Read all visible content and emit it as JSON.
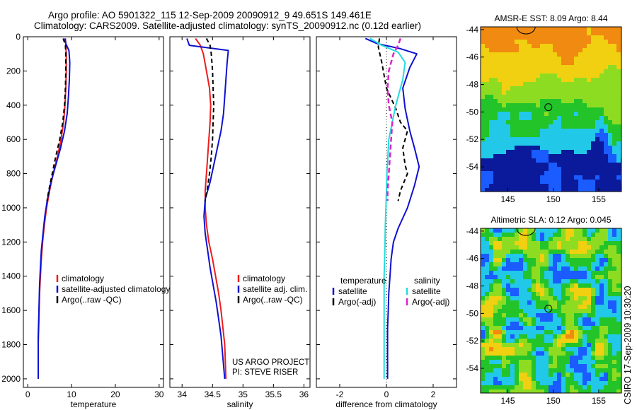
{
  "header": {
    "line1": "Argo profile: AO 5901322_115 12-Sep-2009 20090912_9 49.651S 149.461E",
    "line2": "Climatology: CARS2009. Satellite-adjusted climatology: synTS_20090912.nc (0.12d earlier)"
  },
  "credit": {
    "line1": "US ARGO PROJECT",
    "line2": "PI: STEVE RISER"
  },
  "side_label": "CSIRO 17-Sep-2009 10:30:20",
  "colors": {
    "climatology": "#ee1c1c",
    "satellite": "#1010d0",
    "argo": "#000000",
    "satellite_diff": "#22dddd",
    "salinity_argo_diff": "#dd22cc",
    "map_deep": "#0a1a9a",
    "map_green": "#22c42a",
    "map_orange": "#f08a10"
  },
  "chart_data": [
    {
      "type": "line",
      "xlabel": "temperature",
      "xlim": [
        -1,
        31
      ],
      "ylim": [
        2050,
        0
      ],
      "y_reversed": true,
      "xticks": [
        0,
        10,
        20,
        30
      ],
      "yticks": [
        0,
        200,
        400,
        600,
        800,
        1000,
        1200,
        1400,
        1600,
        1800,
        2000
      ],
      "series": [
        {
          "name": "climatology",
          "color": "#ee1c1c",
          "width": 2,
          "dash": "",
          "x": [
            8.6,
            8.7,
            8.8,
            8.8,
            8.7,
            8.5,
            8.2,
            7.6,
            6.8,
            5.8,
            5.0,
            4.3,
            3.8,
            3.4,
            3.1,
            2.9,
            2.7,
            2.6,
            2.5,
            2.4,
            2.4
          ],
          "y": [
            10,
            50,
            100,
            200,
            300,
            400,
            500,
            600,
            700,
            800,
            900,
            1000,
            1100,
            1200,
            1300,
            1400,
            1500,
            1600,
            1700,
            1800,
            2000
          ]
        },
        {
          "name": "satellite-adjusted climatology",
          "color": "#1010d0",
          "width": 2,
          "dash": "",
          "x": [
            8.5,
            8.7,
            9.4,
            9.6,
            9.5,
            9.3,
            9.0,
            8.4,
            7.5,
            6.4,
            5.3,
            4.5,
            3.9,
            3.5,
            3.1,
            2.9,
            2.7,
            2.6,
            2.5,
            2.4,
            2.4
          ],
          "y": [
            10,
            40,
            80,
            150,
            250,
            350,
            450,
            550,
            650,
            750,
            850,
            950,
            1050,
            1150,
            1250,
            1350,
            1450,
            1550,
            1650,
            1750,
            2000
          ]
        },
        {
          "name": "Argo(..raw -QC)",
          "color": "#000000",
          "width": 2,
          "dash": "6,4",
          "x": [
            8.1,
            8.6,
            8.7,
            8.7,
            8.6,
            8.4,
            8.0,
            7.3,
            6.4,
            5.6,
            4.8,
            4.4
          ],
          "y": [
            10,
            50,
            100,
            200,
            300,
            400,
            500,
            600,
            700,
            800,
            900,
            960
          ]
        }
      ],
      "legend": {
        "position": "lower-right",
        "entries": [
          "climatology",
          "satellite-adjusted climatology",
          "Argo(..raw -QC)"
        ]
      }
    },
    {
      "type": "line",
      "xlabel": "salinity",
      "xlim": [
        33.8,
        36.1
      ],
      "ylim": [
        2050,
        0
      ],
      "y_reversed": true,
      "xticks": [
        34,
        34.5,
        35,
        35.5,
        36
      ],
      "series": [
        {
          "name": "climatology",
          "color": "#ee1c1c",
          "width": 2,
          "dash": "",
          "x": [
            34.22,
            34.3,
            34.35,
            34.4,
            34.45,
            34.47,
            34.46,
            34.44,
            34.42,
            34.4,
            34.38,
            34.38,
            34.4,
            34.44,
            34.5,
            34.55,
            34.6,
            34.64,
            34.67,
            34.7,
            34.72
          ],
          "y": [
            10,
            50,
            100,
            200,
            300,
            400,
            500,
            600,
            700,
            800,
            900,
            1000,
            1100,
            1200,
            1300,
            1400,
            1500,
            1600,
            1700,
            1800,
            2000
          ]
        },
        {
          "name": "satellite adj. clim.",
          "color": "#1010d0",
          "width": 2,
          "dash": "",
          "x": [
            34.08,
            34.12,
            34.76,
            34.74,
            34.72,
            34.7,
            34.68,
            34.64,
            34.58,
            34.52,
            34.46,
            34.38,
            34.36,
            34.38,
            34.42,
            34.46,
            34.51,
            34.56,
            34.6,
            34.64,
            34.7
          ],
          "y": [
            10,
            50,
            80,
            150,
            250,
            350,
            450,
            550,
            650,
            750,
            850,
            950,
            1050,
            1150,
            1250,
            1350,
            1450,
            1550,
            1650,
            1750,
            2000
          ]
        },
        {
          "name": "Argo(..raw -QC)",
          "color": "#000000",
          "width": 2,
          "dash": "6,4",
          "x": [
            34.4,
            34.46,
            34.48,
            34.5,
            34.51,
            34.52,
            34.51,
            34.5,
            34.48,
            34.45,
            34.41,
            34.38
          ],
          "y": [
            10,
            50,
            100,
            200,
            300,
            400,
            500,
            600,
            700,
            800,
            900,
            960
          ]
        }
      ],
      "legend": {
        "position": "lower-right",
        "entries": [
          "climatology",
          "satellite adj. clim.",
          "Argo(..raw -QC)"
        ]
      }
    },
    {
      "type": "line",
      "xlabel": "difference from climatology",
      "xlim": [
        -3,
        3
      ],
      "ylim": [
        2050,
        0
      ],
      "y_reversed": true,
      "xticks": [
        -2,
        0,
        2
      ],
      "series": [
        {
          "name": "temperature satellite",
          "color": "#1010d0",
          "width": 2,
          "dash": "",
          "x": [
            -0.9,
            -0.4,
            0.6,
            1.3,
            1.0,
            0.7,
            0.8,
            1.0,
            1.2,
            1.4,
            1.2,
            0.9,
            0.5,
            0.3,
            0.2,
            0.15,
            0.1,
            0.08,
            0.05,
            0.05,
            0.05
          ],
          "y": [
            10,
            40,
            70,
            100,
            180,
            300,
            420,
            550,
            650,
            760,
            870,
            1000,
            1120,
            1200,
            1300,
            1400,
            1500,
            1600,
            1700,
            1800,
            2000
          ]
        },
        {
          "name": "temperature Argo(-adj)",
          "color": "#000000",
          "width": 2,
          "dash": "6,4",
          "x": [
            -0.3,
            -0.35,
            -0.2,
            0.0,
            0.4,
            0.6,
            0.9,
            0.7,
            0.8,
            0.9,
            0.6,
            0.5
          ],
          "y": [
            10,
            60,
            150,
            300,
            420,
            500,
            550,
            650,
            750,
            800,
            900,
            960
          ]
        },
        {
          "name": "salinity satellite",
          "color": "#22dddd",
          "width": 2,
          "dash": "",
          "x": [
            -0.7,
            -0.2,
            0.5,
            0.8,
            0.7,
            0.4,
            0.1,
            0.02,
            -0.02,
            -0.05,
            -0.06,
            -0.08,
            -0.1,
            -0.1,
            -0.1,
            -0.1,
            -0.1
          ],
          "y": [
            10,
            50,
            90,
            150,
            250,
            400,
            600,
            800,
            1000,
            1100,
            1200,
            1300,
            1400,
            1500,
            1600,
            1800,
            2000
          ]
        },
        {
          "name": "salinity Argo(-adj)",
          "color": "#dd22cc",
          "width": 2.5,
          "dash": "7,4",
          "x": [
            0.6,
            0.5,
            0.3,
            0.1,
            0.05,
            0.1,
            0.25,
            0.2,
            0.15,
            0.1,
            0.05,
            0.05
          ],
          "y": [
            10,
            50,
            100,
            200,
            300,
            400,
            500,
            600,
            700,
            800,
            900,
            960
          ]
        }
      ],
      "legend": {
        "position": "lower-center",
        "columns": [
          {
            "heading": "temperature",
            "entries": [
              {
                "label": "satellite",
                "color": "#1010d0"
              },
              {
                "label": "Argo(-adj)",
                "color": "#000000"
              }
            ]
          },
          {
            "heading": "salinity",
            "entries": [
              {
                "label": "satellite",
                "color": "#22dddd"
              },
              {
                "label": "Argo(-adj)",
                "color": "#dd22cc"
              }
            ]
          }
        ]
      }
    },
    {
      "type": "heatmap",
      "title": "AMSR-E SST: 8.09 Argo: 8.44",
      "xlim": [
        142,
        157.5
      ],
      "ylim": [
        -55.8,
        -43.8
      ],
      "xticks": [
        145,
        150,
        155
      ],
      "yticks": [
        -44,
        -46,
        -48,
        -50,
        -52,
        -54
      ],
      "marker": {
        "lon": 149.461,
        "lat": -49.651
      },
      "palette": [
        "#0a1a9a",
        "#1a5cff",
        "#22c8e8",
        "#22c42a",
        "#8edc22",
        "#f0d010",
        "#f08a10"
      ]
    },
    {
      "type": "heatmap",
      "title": "Altimetric SLA: 0.12 Argo: 0.045",
      "xlim": [
        142,
        157.5
      ],
      "ylim": [
        -55.8,
        -43.8
      ],
      "xticks": [
        145,
        150,
        155
      ],
      "yticks": [
        -44,
        -46,
        -48,
        -50,
        -52,
        -54
      ],
      "marker": {
        "lon": 149.461,
        "lat": -49.651
      },
      "palette": [
        "#1a5cff",
        "#22c8e8",
        "#22c42a",
        "#8edc22",
        "#f0d010",
        "#f08a10",
        "#e83010"
      ]
    }
  ]
}
